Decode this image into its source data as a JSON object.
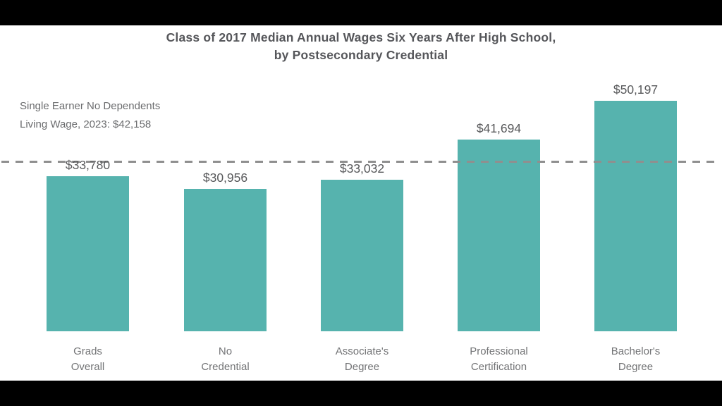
{
  "page": {
    "background_color": "#000000",
    "canvas_color": "#ffffff"
  },
  "chart_data": {
    "type": "bar",
    "title_line1": "Class of 2017 Median Annual Wages Six Years After High School,",
    "title_line2": "by Postsecondary Credential",
    "categories": [
      "Grads\nOverall",
      "No\nCredential",
      "Associate's\nDegree",
      "Professional\nCertification",
      "Bachelor's\nDegree"
    ],
    "values": [
      33780,
      30956,
      33032,
      41694,
      50197
    ],
    "value_labels": [
      "$33,780",
      "$30,956",
      "$33,032",
      "$41,694",
      "$50,197"
    ],
    "reference_line": {
      "value": 42158,
      "label_line1": "Single Earner No Dependents",
      "label_line2": "Living Wage, 2023: $42,158",
      "color": "#8f8f8f",
      "style": "dashed"
    },
    "bar_color": "#56b3ae",
    "ylim": [
      0,
      53000
    ],
    "grid": false,
    "legend": false,
    "xlabel": "",
    "ylabel": ""
  }
}
